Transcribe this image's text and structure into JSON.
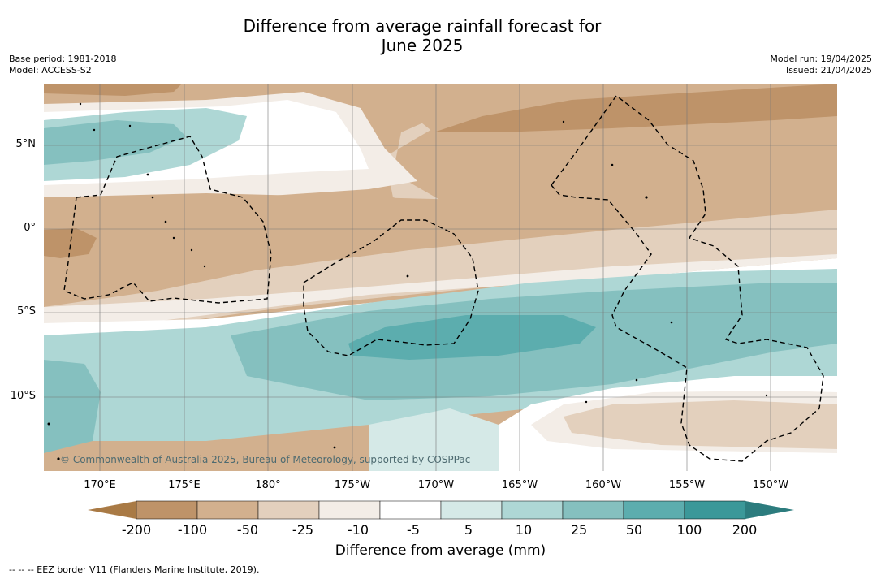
{
  "title_line1": "Difference from average rainfall forecast for",
  "title_line2": "June 2025",
  "meta_left": {
    "base_period": "Base period: 1981-2018",
    "model": "Model: ACCESS-S2"
  },
  "meta_right": {
    "model_run": "Model run: 19/04/2025",
    "issued": "Issued: 21/04/2025"
  },
  "copyright": "© Commonwealth of Australia 2025, Bureau of Meteorology, supported by COSPPac",
  "lon_ticks": [
    "170°E",
    "175°E",
    "180°",
    "175°W",
    "170°W",
    "165°W",
    "160°W",
    "155°W",
    "150°W"
  ],
  "lat_ticks": [
    "5°N",
    "0°",
    "5°S",
    "10°S"
  ],
  "colorbar": {
    "title": "Difference from average (mm)",
    "labels": [
      "-200",
      "-100",
      "-50",
      "-25",
      "-10",
      "-5",
      "5",
      "10",
      "25",
      "50",
      "100",
      "200"
    ],
    "colors": [
      "#a97a45",
      "#be9369",
      "#d2b08e",
      "#e3d0bd",
      "#f3ede7",
      "#ffffff",
      "#d5e9e7",
      "#aed7d5",
      "#85c0bf",
      "#5cadae",
      "#3b9899",
      "#2c7c7e"
    ]
  },
  "footnote": "--  --  -- EEZ border V11 (Flanders Marine Institute, 2019)."
}
